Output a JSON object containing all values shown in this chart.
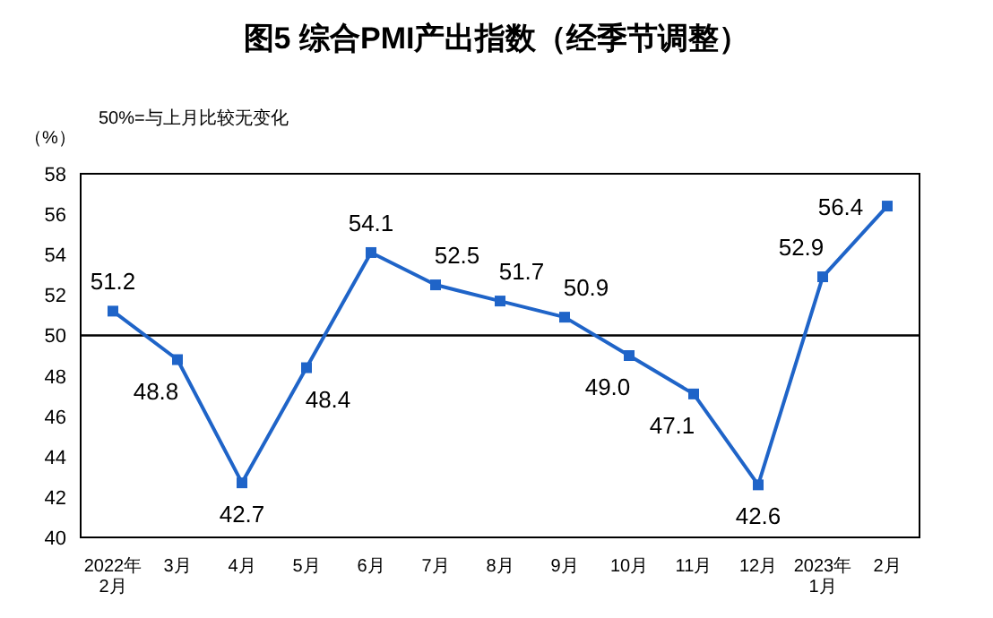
{
  "chart_data": {
    "type": "line",
    "title": "图5 综合PMI产出指数（经季节调整）",
    "ylabel": "（%）",
    "annotations": [
      "50%=与上月比较无变化"
    ],
    "categories": [
      "2022年\n2月",
      "3月",
      "4月",
      "5月",
      "6月",
      "7月",
      "8月",
      "9月",
      "10月",
      "11月",
      "12月",
      "2023年\n1月",
      "2月"
    ],
    "series": [
      {
        "color": "#1f64c8",
        "values": [
          51.2,
          48.8,
          42.7,
          48.4,
          54.1,
          52.5,
          51.7,
          50.9,
          49.0,
          47.1,
          42.6,
          52.9,
          56.4
        ]
      }
    ],
    "ylim": [
      40,
      58
    ],
    "yticks": [
      40,
      42,
      44,
      46,
      48,
      50,
      52,
      54,
      56,
      58
    ],
    "ref_lines": [
      {
        "axis": "y",
        "value": 50,
        "color": "#000000"
      }
    ],
    "marker": "square",
    "line_style": "solid",
    "grid": false,
    "value_labels": [
      "51.2",
      "48.8",
      "42.7",
      "48.4",
      "54.1",
      "52.5",
      "51.7",
      "50.9",
      "49.0",
      "47.1",
      "42.6",
      "52.9",
      "56.4"
    ]
  }
}
